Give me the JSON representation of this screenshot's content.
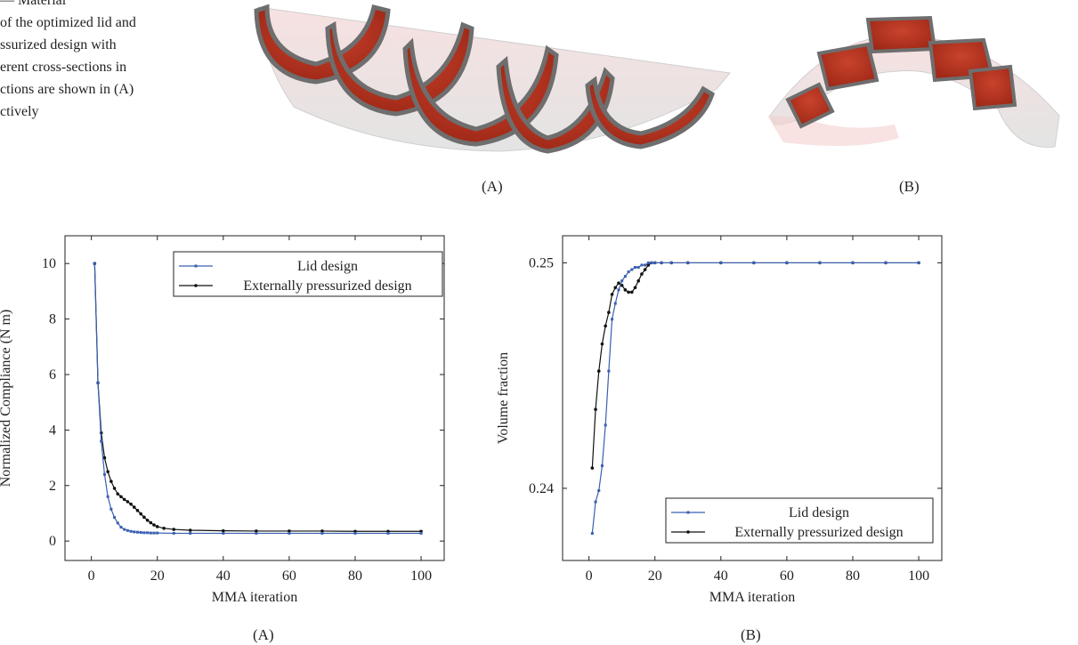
{
  "caption": {
    "lines": [
      "— Material",
      "of the optimized lid and",
      "ssurized design with",
      "erent cross-sections in",
      "ctions are shown in (A)",
      "ctively"
    ]
  },
  "top_figures": {
    "label_a": "(A)",
    "label_b": "(B)",
    "colors": {
      "material": "#b8301f",
      "edge": "#6e6e6e",
      "shell": "#d9d9d9",
      "tint": "#f4c8c8"
    }
  },
  "bottom_figures": {
    "label_a": "(A)",
    "label_b": "(B)"
  },
  "chart_data": [
    {
      "type": "line",
      "title": "",
      "xlabel": "MMA iteration",
      "ylabel": "Normalized Compliance (N m)",
      "xlim": [
        -8,
        107
      ],
      "ylim": [
        -0.7,
        11
      ],
      "xticks": [
        0,
        20,
        40,
        60,
        80,
        100
      ],
      "yticks": [
        0,
        2,
        4,
        6,
        8,
        10
      ],
      "legend": "top-right",
      "grid": false,
      "series": [
        {
          "name": "Lid design",
          "color": "#3a5fb0",
          "x": [
            1,
            2,
            3,
            4,
            5,
            6,
            7,
            8,
            9,
            10,
            11,
            12,
            13,
            14,
            15,
            16,
            17,
            18,
            19,
            20,
            25,
            30,
            40,
            50,
            60,
            70,
            80,
            90,
            100
          ],
          "y": [
            10,
            5.7,
            3.6,
            2.4,
            1.6,
            1.15,
            0.85,
            0.65,
            0.5,
            0.42,
            0.38,
            0.35,
            0.33,
            0.32,
            0.31,
            0.3,
            0.3,
            0.29,
            0.29,
            0.29,
            0.28,
            0.28,
            0.28,
            0.28,
            0.28,
            0.28,
            0.28,
            0.28,
            0.28
          ]
        },
        {
          "name": "Externally pressurized design",
          "color": "#111111",
          "x": [
            1,
            2,
            3,
            4,
            5,
            6,
            7,
            8,
            9,
            10,
            11,
            12,
            13,
            14,
            15,
            16,
            17,
            18,
            19,
            20,
            22,
            25,
            30,
            40,
            50,
            60,
            70,
            80,
            90,
            100
          ],
          "y": [
            10,
            5.7,
            3.9,
            3.0,
            2.5,
            2.15,
            1.9,
            1.7,
            1.6,
            1.5,
            1.42,
            1.33,
            1.22,
            1.1,
            0.98,
            0.86,
            0.75,
            0.66,
            0.58,
            0.52,
            0.46,
            0.42,
            0.39,
            0.37,
            0.36,
            0.36,
            0.36,
            0.35,
            0.35,
            0.35
          ]
        }
      ]
    },
    {
      "type": "line",
      "title": "",
      "xlabel": "MMA iteration",
      "ylabel": "Volume fraction",
      "xlim": [
        -8,
        107
      ],
      "ylim": [
        0.2368,
        0.2512
      ],
      "xticks": [
        0,
        20,
        40,
        60,
        80,
        100
      ],
      "yticks": [
        0.24,
        0.25
      ],
      "legend": "bottom-right",
      "grid": false,
      "series": [
        {
          "name": "Lid design",
          "color": "#3a5fb0",
          "x": [
            1,
            2,
            3,
            4,
            5,
            6,
            7,
            8,
            9,
            10,
            11,
            12,
            13,
            14,
            15,
            16,
            17,
            18,
            19,
            20,
            22,
            25,
            30,
            40,
            50,
            60,
            70,
            80,
            90,
            100
          ],
          "y": [
            0.238,
            0.2394,
            0.2399,
            0.241,
            0.2428,
            0.2452,
            0.2475,
            0.2482,
            0.2488,
            0.2492,
            0.2494,
            0.2496,
            0.2497,
            0.2498,
            0.2498,
            0.2499,
            0.2499,
            0.25,
            0.25,
            0.25,
            0.25,
            0.25,
            0.25,
            0.25,
            0.25,
            0.25,
            0.25,
            0.25,
            0.25,
            0.25
          ]
        },
        {
          "name": "Externally pressurized design",
          "color": "#111111",
          "x": [
            1,
            2,
            3,
            4,
            5,
            6,
            7,
            8,
            9,
            10,
            11,
            12,
            13,
            14,
            15,
            16,
            17,
            18,
            19,
            20,
            22,
            25,
            30,
            40,
            50,
            60,
            70,
            80,
            90,
            100
          ],
          "y": [
            0.2409,
            0.2435,
            0.2452,
            0.2464,
            0.2472,
            0.2478,
            0.2486,
            0.2489,
            0.2491,
            0.249,
            0.2488,
            0.2487,
            0.2487,
            0.2489,
            0.2492,
            0.2495,
            0.2497,
            0.2499,
            0.25,
            0.25,
            0.25,
            0.25,
            0.25,
            0.25,
            0.25,
            0.25,
            0.25,
            0.25,
            0.25,
            0.25
          ]
        }
      ]
    }
  ]
}
